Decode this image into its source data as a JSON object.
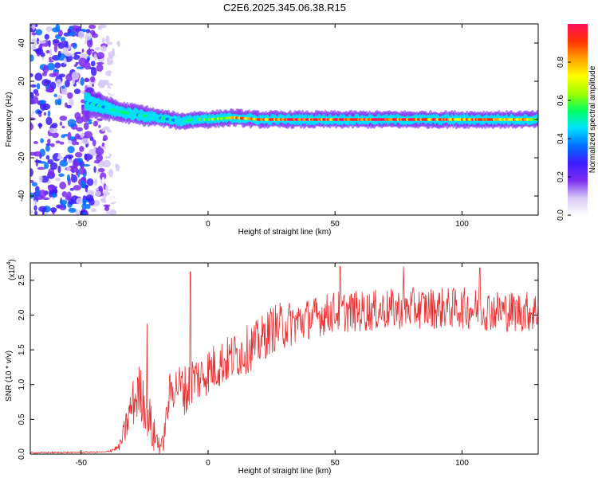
{
  "figure": {
    "title": "C2E6.2025.345.06.38.R15"
  },
  "chart_data": [
    {
      "type": "heatmap",
      "xlabel": "Height of straight line (km)",
      "ylabel": "Frequency (Hz)",
      "xlim": [
        -70,
        130
      ],
      "ylim": [
        -50,
        50
      ],
      "xticks": [
        -50,
        0,
        50,
        100
      ],
      "yticks": [
        -40,
        -20,
        0,
        20,
        40
      ],
      "grid": false,
      "colorbar": {
        "label": "Normalized spectral amplitude",
        "range": [
          0,
          1
        ],
        "ticks": [
          "0.0",
          "0.2",
          "0.4",
          "0.6",
          "0.8"
        ],
        "colors": [
          "#ffffff",
          "#d6c8f5",
          "#7b2cf0",
          "#3b1cff",
          "#0070ff",
          "#00e0ff",
          "#00ff60",
          "#a0ff00",
          "#ffff00",
          "#ffa000",
          "#ff3000",
          "#ff1060"
        ]
      },
      "ridge": {
        "x": [
          -48,
          -45,
          -40,
          -35,
          -30,
          -25,
          -20,
          -15,
          -10,
          -5,
          0,
          10,
          20,
          40,
          60,
          80,
          100,
          120,
          130
        ],
        "freq": [
          9,
          8,
          6,
          4,
          3,
          2,
          1,
          0,
          -1,
          0,
          0,
          1,
          0,
          0,
          0,
          0,
          0,
          0,
          0
        ],
        "amp": [
          0.45,
          0.5,
          0.48,
          0.55,
          0.5,
          0.55,
          0.5,
          0.45,
          0.5,
          0.55,
          0.6,
          0.8,
          0.9,
          1.0,
          1.0,
          0.95,
          0.9,
          0.85,
          0.7
        ],
        "width": [
          8,
          6,
          5,
          4,
          4,
          4,
          3,
          3,
          3,
          3,
          3,
          3,
          3,
          3,
          3,
          3,
          3,
          3,
          3
        ]
      },
      "noise_region": {
        "x": [
          -70,
          -35
        ],
        "freq": [
          -50,
          50
        ]
      }
    },
    {
      "type": "line",
      "xlabel": "Height of straight line (km)",
      "ylabel": "SNR (10 * v/v)",
      "multiplier": "(x10",
      "multiplier_exp": "4",
      "multiplier_close": ")",
      "xlim": [
        -70,
        130
      ],
      "ylim": [
        0,
        2.75
      ],
      "xticks": [
        -50,
        0,
        50,
        100
      ],
      "yticks": [
        "0.0",
        "0.5",
        "1.0",
        "1.5",
        "2.0",
        "2.5"
      ],
      "color": "#e83030",
      "grid": false,
      "envelope": {
        "x": [
          -70,
          -40,
          -35,
          -33,
          -30,
          -27,
          -24,
          -22,
          -20,
          -18,
          -15,
          -12,
          -8,
          -6,
          -3,
          0,
          5,
          10,
          15,
          20,
          25,
          30,
          40,
          50,
          60,
          80,
          100,
          120,
          130
        ],
        "mean": [
          0.02,
          0.03,
          0.1,
          0.3,
          0.7,
          0.9,
          0.7,
          0.3,
          0.2,
          0.1,
          0.9,
          1.0,
          0.9,
          1.1,
          1.1,
          1.2,
          1.3,
          1.4,
          1.5,
          1.6,
          1.8,
          1.85,
          1.95,
          2.05,
          2.05,
          2.1,
          2.1,
          2.05,
          2.05
        ],
        "amp": [
          0.01,
          0.01,
          0.05,
          0.2,
          0.35,
          0.4,
          0.45,
          0.3,
          0.2,
          0.15,
          0.3,
          0.3,
          0.4,
          0.35,
          0.35,
          0.35,
          0.35,
          0.35,
          0.35,
          0.35,
          0.35,
          0.35,
          0.3,
          0.3,
          0.3,
          0.3,
          0.3,
          0.3,
          0.3
        ]
      },
      "spikes": [
        {
          "x": -24,
          "y": 1.88
        },
        {
          "x": -7,
          "y": 2.62
        },
        {
          "x": 52,
          "y": 2.7
        },
        {
          "x": 77,
          "y": 2.7
        },
        {
          "x": 107,
          "y": 2.68
        }
      ]
    }
  ]
}
